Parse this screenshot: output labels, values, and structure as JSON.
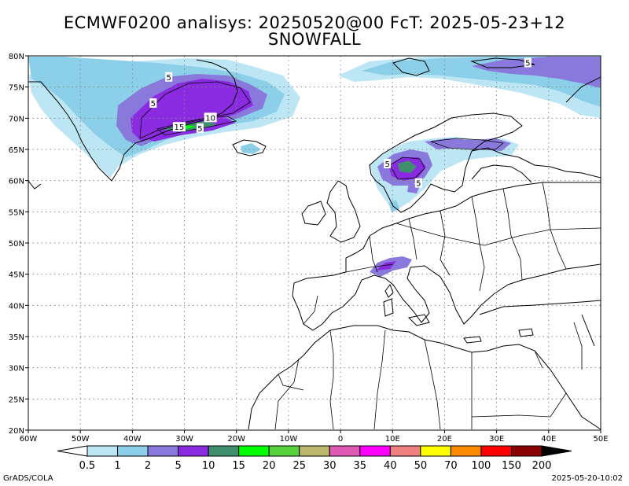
{
  "title": {
    "line1": "ECMWF0200 analisys: 20250520@00 FcT: 2025-05-23+12",
    "line2": "SNOWFALL"
  },
  "map": {
    "lon_range": [
      -60,
      50
    ],
    "lat_range": [
      20,
      80
    ],
    "lon_ticks": [
      {
        "value": -60,
        "label": "60W"
      },
      {
        "value": -50,
        "label": "50W"
      },
      {
        "value": -40,
        "label": "40W"
      },
      {
        "value": -30,
        "label": "30W"
      },
      {
        "value": -20,
        "label": "20W"
      },
      {
        "value": -10,
        "label": "10W"
      },
      {
        "value": 0,
        "label": "0"
      },
      {
        "value": 10,
        "label": "10E"
      },
      {
        "value": 20,
        "label": "20E"
      },
      {
        "value": 30,
        "label": "30E"
      },
      {
        "value": 40,
        "label": "40E"
      },
      {
        "value": 50,
        "label": "50E"
      }
    ],
    "lat_ticks": [
      {
        "value": 80,
        "label": "80N"
      },
      {
        "value": 75,
        "label": "75N"
      },
      {
        "value": 70,
        "label": "70N"
      },
      {
        "value": 65,
        "label": "65N"
      },
      {
        "value": 60,
        "label": "60N"
      },
      {
        "value": 55,
        "label": "55N"
      },
      {
        "value": 50,
        "label": "50N"
      },
      {
        "value": 45,
        "label": "45N"
      },
      {
        "value": 40,
        "label": "40N"
      },
      {
        "value": 35,
        "label": "35N"
      },
      {
        "value": 30,
        "label": "30N"
      },
      {
        "value": 25,
        "label": "25N"
      },
      {
        "value": 20,
        "label": "20N"
      }
    ],
    "contour_labels": [
      {
        "text": "5",
        "lon": -33,
        "lat": 76.5
      },
      {
        "text": "5",
        "lon": -36,
        "lat": 72.3
      },
      {
        "text": "10",
        "lon": -25,
        "lat": 70
      },
      {
        "text": "15",
        "lon": -31,
        "lat": 68.5
      },
      {
        "text": "5",
        "lon": -27,
        "lat": 68.3
      },
      {
        "text": "5",
        "lon": 9,
        "lat": 62.6
      },
      {
        "text": "5",
        "lon": 15,
        "lat": 59.5
      },
      {
        "text": "5",
        "lon": 36,
        "lat": 78.8
      }
    ]
  },
  "legend": {
    "colors": [
      "#ffffff",
      "#bde6f5",
      "#8bcfe9",
      "#8a79dc",
      "#8a2be2",
      "#3f8f6f",
      "#00ff00",
      "#58d23c",
      "#bdb76b",
      "#e05ab4",
      "#ff00ff",
      "#f08080",
      "#ffff00",
      "#ff8c00",
      "#ff0000",
      "#8b0000",
      "#000000"
    ],
    "labels": [
      "0.5",
      "1",
      "2",
      "5",
      "10",
      "15",
      "20",
      "25",
      "30",
      "35",
      "40",
      "50",
      "70",
      "100",
      "150",
      "200"
    ]
  },
  "footer": {
    "left": "GrADS/COLA",
    "right": "2025-05-20-10:02"
  }
}
